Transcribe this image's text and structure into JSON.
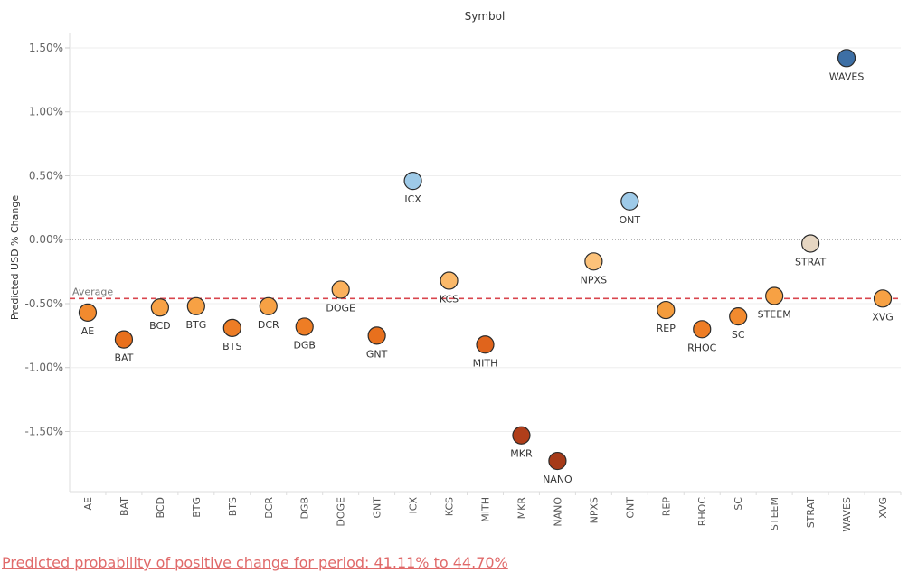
{
  "chart_data": {
    "type": "scatter",
    "title": "Symbol",
    "ylabel": "Predicted USD % Change",
    "xlabel": "",
    "ylim": [
      -1.97,
      1.62
    ],
    "yticks": [
      1.5,
      1.0,
      0.5,
      0.0,
      -0.5,
      -1.0,
      -1.5
    ],
    "ytick_labels": [
      "1.50%",
      "1.00%",
      "0.50%",
      "0.00%",
      "-0.50%",
      "-1.00%",
      "-1.50%"
    ],
    "average": {
      "value": -0.46,
      "label": "Average"
    },
    "categories": [
      "AE",
      "BAT",
      "BCD",
      "BTG",
      "BTS",
      "DCR",
      "DGB",
      "DOGE",
      "GNT",
      "ICX",
      "KCS",
      "MITH",
      "MKR",
      "NANO",
      "NPXS",
      "ONT",
      "REP",
      "RHOC",
      "SC",
      "STEEM",
      "STRAT",
      "WAVES",
      "XVG"
    ],
    "values": [
      -0.57,
      -0.78,
      -0.53,
      -0.52,
      -0.69,
      -0.52,
      -0.68,
      -0.39,
      -0.75,
      0.46,
      -0.32,
      -0.82,
      -1.53,
      -1.73,
      -0.17,
      0.3,
      -0.55,
      -0.7,
      -0.6,
      -0.44,
      -0.03,
      1.42,
      -0.46
    ],
    "colors": [
      "#f28a2e",
      "#e8701d",
      "#f7a144",
      "#f7a144",
      "#ee7d25",
      "#f7a144",
      "#ee7d25",
      "#fbb15c",
      "#e8701d",
      "#9ecae8",
      "#fbb96a",
      "#e0641c",
      "#b03e1a",
      "#a63a18",
      "#fcc27a",
      "#9ecae8",
      "#f49c3d",
      "#ee7d25",
      "#f28a2e",
      "#f7a144",
      "#e6d6c2",
      "#3d6fa5",
      "#f7a144"
    ]
  },
  "footer": {
    "text": "Predicted probability of positive change for period:  41.11% to 44.70%"
  }
}
